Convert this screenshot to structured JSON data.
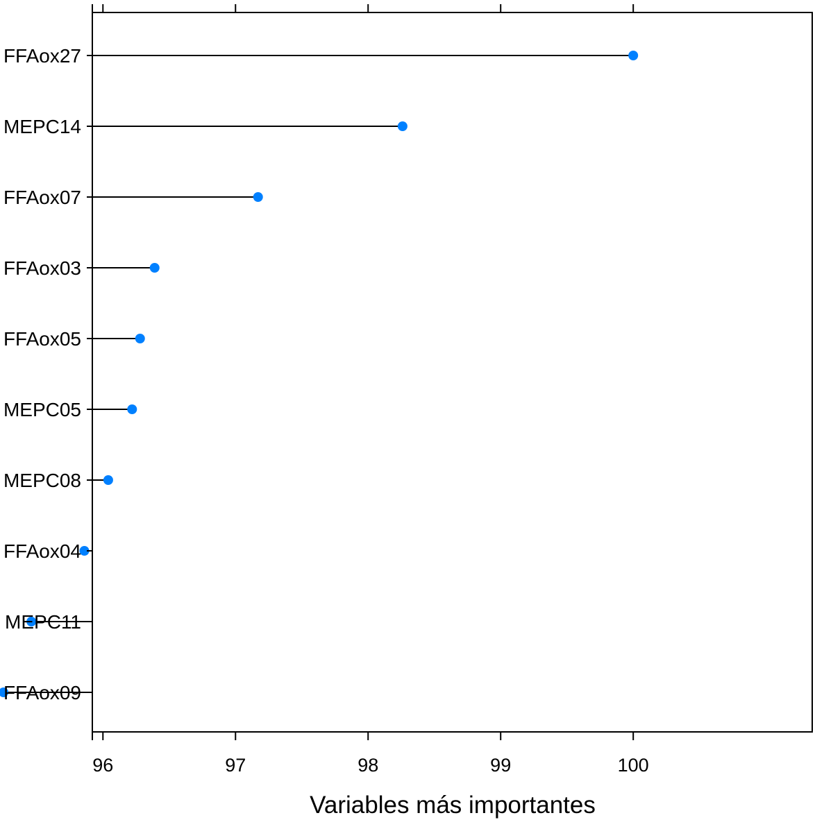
{
  "chart_data": {
    "type": "dot",
    "xlabel": "Variables más importantes",
    "xlim": [
      95.92,
      101.35
    ],
    "xticks": [
      96,
      97,
      98,
      99,
      100
    ],
    "xtick_labels": [
      "96",
      "97",
      "98",
      "99",
      "100"
    ],
    "grid": false,
    "point_color": "#0080ff",
    "line_color": "#000000",
    "categories": [
      "FFAox27",
      "MEPC14",
      "FFAox07",
      "FFAox03",
      "FFAox05",
      "MEPC05",
      "MEPC08",
      "FFAox04",
      "MEPC11",
      "FFAox09"
    ],
    "values": [
      100.0,
      98.26,
      97.17,
      96.39,
      96.28,
      96.22,
      96.04,
      95.86,
      95.46,
      95.25
    ]
  }
}
